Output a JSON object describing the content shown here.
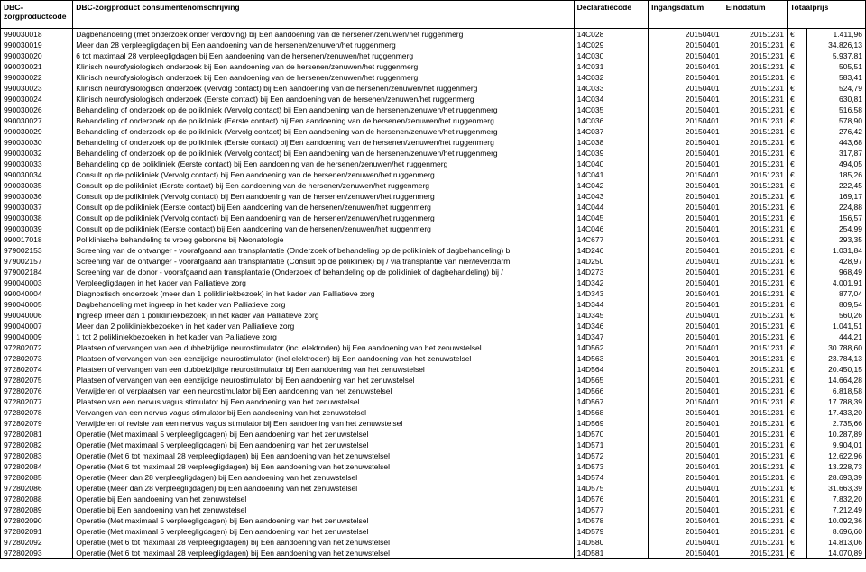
{
  "columns": [
    {
      "key": "code",
      "label": "DBC-zorgproductcode",
      "class": "code"
    },
    {
      "key": "desc",
      "label": "DBC-zorgproduct consumentenomschrijving",
      "class": "desc"
    },
    {
      "key": "decl",
      "label": "Declaratiecode",
      "class": "code"
    },
    {
      "key": "ingang",
      "label": "Ingangsdatum",
      "class": "num"
    },
    {
      "key": "eind",
      "label": "Einddatum",
      "class": "num"
    },
    {
      "key": "totaalprijs",
      "label": "Totaalprijs",
      "class": "cur",
      "colspan": 2
    }
  ],
  "currency_symbol": "€",
  "rows": [
    {
      "code": "990030018",
      "desc": "Dagbehandeling (met onderzoek onder verdoving) bij Een aandoening van de hersenen/zenuwen/het ruggenmerg",
      "decl": "14C028",
      "ingang": "20150401",
      "eind": "20151231",
      "prijs": "1.411,96"
    },
    {
      "code": "990030019",
      "desc": "Meer dan 28 verpleegligdagen bij Een aandoening van de hersenen/zenuwen/het ruggenmerg",
      "decl": "14C029",
      "ingang": "20150401",
      "eind": "20151231",
      "prijs": "34.826,13"
    },
    {
      "code": "990030020",
      "desc": "6 tot maximaal 28 verpleegligdagen bij Een aandoening van de hersenen/zenuwen/het ruggenmerg",
      "decl": "14C030",
      "ingang": "20150401",
      "eind": "20151231",
      "prijs": "5.937,81"
    },
    {
      "code": "990030021",
      "desc": "Klinisch neurofysiologisch onderzoek bij Een aandoening van de hersenen/zenuwen/het ruggenmerg",
      "decl": "14C031",
      "ingang": "20150401",
      "eind": "20151231",
      "prijs": "505,51"
    },
    {
      "code": "990030022",
      "desc": "Klinisch neurofysiologisch onderzoek bij Een aandoening van de hersenen/zenuwen/het ruggenmerg",
      "decl": "14C032",
      "ingang": "20150401",
      "eind": "20151231",
      "prijs": "583,41"
    },
    {
      "code": "990030023",
      "desc": "Klinisch neurofysiologisch onderzoek (Vervolg contact) bij Een aandoening van de hersenen/zenuwen/het ruggenmerg",
      "decl": "14C033",
      "ingang": "20150401",
      "eind": "20151231",
      "prijs": "524,79"
    },
    {
      "code": "990030024",
      "desc": "Klinisch neurofysiologisch onderzoek (Eerste contact) bij Een aandoening van de hersenen/zenuwen/het ruggenmerg",
      "decl": "14C034",
      "ingang": "20150401",
      "eind": "20151231",
      "prijs": "630,81"
    },
    {
      "code": "990030026",
      "desc": "Behandeling of onderzoek op de polikliniek (Vervolg contact) bij Een aandoening van de hersenen/zenuwen/het ruggenmerg",
      "decl": "14C035",
      "ingang": "20150401",
      "eind": "20151231",
      "prijs": "516,58"
    },
    {
      "code": "990030027",
      "desc": "Behandeling of onderzoek op de polikliniek (Eerste contact) bij Een aandoening van de hersenen/zenuwen/het ruggenmerg",
      "decl": "14C036",
      "ingang": "20150401",
      "eind": "20151231",
      "prijs": "578,90"
    },
    {
      "code": "990030029",
      "desc": "Behandeling of onderzoek op de polikliniek (Vervolg contact) bij Een aandoening van de hersenen/zenuwen/het ruggenmerg",
      "decl": "14C037",
      "ingang": "20150401",
      "eind": "20151231",
      "prijs": "276,42"
    },
    {
      "code": "990030030",
      "desc": "Behandeling of onderzoek op de polikliniek (Eerste contact) bij Een aandoening van de hersenen/zenuwen/het ruggenmerg",
      "decl": "14C038",
      "ingang": "20150401",
      "eind": "20151231",
      "prijs": "443,68"
    },
    {
      "code": "990030032",
      "desc": "Behandeling of onderzoek op de polikliniek (Vervolg contact) bij Een aandoening van de hersenen/zenuwen/het ruggenmerg",
      "decl": "14C039",
      "ingang": "20150401",
      "eind": "20151231",
      "prijs": "317,87"
    },
    {
      "code": "990030033",
      "desc": "Behandeling op de polikliniek (Eerste contact) bij Een aandoening van de hersenen/zenuwen/het ruggenmerg",
      "decl": "14C040",
      "ingang": "20150401",
      "eind": "20151231",
      "prijs": "494,05"
    },
    {
      "code": "990030034",
      "desc": "Consult op de polikliniek (Vervolg contact) bij Een aandoening van de hersenen/zenuwen/het ruggenmerg",
      "decl": "14C041",
      "ingang": "20150401",
      "eind": "20151231",
      "prijs": "185,26"
    },
    {
      "code": "990030035",
      "desc": "Consult op de polikliniet (Eerste contact) bij Een aandoening van de hersenen/zenuwen/het ruggenmerg",
      "decl": "14C042",
      "ingang": "20150401",
      "eind": "20151231",
      "prijs": "222,45"
    },
    {
      "code": "990030036",
      "desc": "Consult op de polikliniek (Vervolg contact) bij Een aandoening van de hersenen/zenuwen/het ruggenmerg",
      "decl": "14C043",
      "ingang": "20150401",
      "eind": "20151231",
      "prijs": "169,17"
    },
    {
      "code": "990030037",
      "desc": "Consult op de polikliniek (Eerste contact) bij Een aandoening van de hersenen/zenuwen/het ruggenmerg",
      "decl": "14C044",
      "ingang": "20150401",
      "eind": "20151231",
      "prijs": "224,88"
    },
    {
      "code": "990030038",
      "desc": "Consult op de polikliniek (Vervolg contact) bij Een aandoening van de hersenen/zenuwen/het ruggenmerg",
      "decl": "14C045",
      "ingang": "20150401",
      "eind": "20151231",
      "prijs": "156,57"
    },
    {
      "code": "990030039",
      "desc": "Consult op de polikliniek (Eerste contact) bij Een aandoening van de hersenen/zenuwen/het ruggenmerg",
      "decl": "14C046",
      "ingang": "20150401",
      "eind": "20151231",
      "prijs": "254,99"
    },
    {
      "code": "990017018",
      "desc": "Poliklinische behandeling te vroeg geborene bij Neonatologie",
      "decl": "14C677",
      "ingang": "20150401",
      "eind": "20151231",
      "prijs": "293,35"
    },
    {
      "code": "979002153",
      "desc": "Screening van de ontvanger - voorafgaand aan transplantatie (Onderzoek of behandeling op de polikliniek of dagbehandeling) b",
      "decl": "14D246",
      "ingang": "20150401",
      "eind": "20151231",
      "prijs": "1.031,84"
    },
    {
      "code": "979002157",
      "desc": "Screening van de ontvanger - voorafgaand aan transplantatie (Consult op de polikliniek) bij / via transplantie van nier/lever/darm",
      "decl": "14D250",
      "ingang": "20150401",
      "eind": "20151231",
      "prijs": "428,97"
    },
    {
      "code": "979002184",
      "desc": "Screening van de donor - voorafgaand aan transplantatie (Onderzoek of behandeling op de polikliniek of dagbehandeling) bij /",
      "decl": "14D273",
      "ingang": "20150401",
      "eind": "20151231",
      "prijs": "968,49"
    },
    {
      "code": "990040003",
      "desc": "Verpleegligdagen in het kader van Palliatieve zorg",
      "decl": "14D342",
      "ingang": "20150401",
      "eind": "20151231",
      "prijs": "4.001,91"
    },
    {
      "code": "990040004",
      "desc": "Diagnostisch onderzoek (meer dan 1 polikliniekbezoek) in het kader van Palliatieve zorg",
      "decl": "14D343",
      "ingang": "20150401",
      "eind": "20151231",
      "prijs": "877,04"
    },
    {
      "code": "990040005",
      "desc": "Dagbehandeling met ingreep in het kader van Palliatieve zorg",
      "decl": "14D344",
      "ingang": "20150401",
      "eind": "20151231",
      "prijs": "809,54"
    },
    {
      "code": "990040006",
      "desc": "Ingreep (meer dan 1 polikliniekbezoek) in het kader van Palliatieve zorg",
      "decl": "14D345",
      "ingang": "20150401",
      "eind": "20151231",
      "prijs": "560,26"
    },
    {
      "code": "990040007",
      "desc": "Meer dan 2 polikliniekbezoeken in het kader van Palliatieve zorg",
      "decl": "14D346",
      "ingang": "20150401",
      "eind": "20151231",
      "prijs": "1.041,51"
    },
    {
      "code": "990040009",
      "desc": "1 tot 2 polikliniekbezoeken in het kader van Palliatieve zorg",
      "decl": "14D347",
      "ingang": "20150401",
      "eind": "20151231",
      "prijs": "444,21"
    },
    {
      "code": "972802072",
      "desc": "Plaatsen of vervangen van een dubbelzijdige neurostimulator (incl elektroden) bij Een aandoening van het zenuwstelsel",
      "decl": "14D562",
      "ingang": "20150401",
      "eind": "20151231",
      "prijs": "30.788,60"
    },
    {
      "code": "972802073",
      "desc": "Plaatsen of vervangen van een eenzijdige neurostimulator (incl elektroden) bij Een aandoening van het zenuwstelsel",
      "decl": "14D563",
      "ingang": "20150401",
      "eind": "20151231",
      "prijs": "23.784,13"
    },
    {
      "code": "972802074",
      "desc": "Plaatsen of vervangen van een dubbelzijdige neurostimulator bij Een aandoening van het zenuwstelsel",
      "decl": "14D564",
      "ingang": "20150401",
      "eind": "20151231",
      "prijs": "20.450,15"
    },
    {
      "code": "972802075",
      "desc": "Plaatsen of vervangen van een eenzijdige neurostimulator bij Een aandoening van het zenuwstelsel",
      "decl": "14D565",
      "ingang": "20150401",
      "eind": "20151231",
      "prijs": "14.664,28"
    },
    {
      "code": "972802076",
      "desc": "Verwijderen of verplaatsen van een neurostimulator bij Een aandoening van het zenuwstelsel",
      "decl": "14D566",
      "ingang": "20150401",
      "eind": "20151231",
      "prijs": "6.818,58"
    },
    {
      "code": "972802077",
      "desc": "Plaatsen van een nervus vagus stimulator bij Een aandoening van het zenuwstelsel",
      "decl": "14D567",
      "ingang": "20150401",
      "eind": "20151231",
      "prijs": "17.788,39"
    },
    {
      "code": "972802078",
      "desc": "Vervangen van een nervus vagus stimulator bij Een aandoening van het zenuwstelsel",
      "decl": "14D568",
      "ingang": "20150401",
      "eind": "20151231",
      "prijs": "17.433,20"
    },
    {
      "code": "972802079",
      "desc": "Verwijderen of revisie van een nervus vagus stimulator bij Een aandoening van het zenuwstelsel",
      "decl": "14D569",
      "ingang": "20150401",
      "eind": "20151231",
      "prijs": "2.735,66"
    },
    {
      "code": "972802081",
      "desc": "Operatie (Met maximaal 5 verpleegligdagen) bij Een aandoening van het zenuwstelsel",
      "decl": "14D570",
      "ingang": "20150401",
      "eind": "20151231",
      "prijs": "10.287,89"
    },
    {
      "code": "972802082",
      "desc": "Operatie (Met maximaal 5 verpleegligdagen) bij Een aandoening van het zenuwstelsel",
      "decl": "14D571",
      "ingang": "20150401",
      "eind": "20151231",
      "prijs": "9.904,01"
    },
    {
      "code": "972802083",
      "desc": "Operatie (Met 6 tot maximaal 28 verpleegligdagen) bij Een aandoening van het zenuwstelsel",
      "decl": "14D572",
      "ingang": "20150401",
      "eind": "20151231",
      "prijs": "12.622,96"
    },
    {
      "code": "972802084",
      "desc": "Operatie (Met 6 tot maximaal 28 verpleegligdagen) bij Een aandoening van het zenuwstelsel",
      "decl": "14D573",
      "ingang": "20150401",
      "eind": "20151231",
      "prijs": "13.228,73"
    },
    {
      "code": "972802085",
      "desc": "Operatie (Meer dan 28 verpleegligdagen) bij Een aandoening van het zenuwstelsel",
      "decl": "14D574",
      "ingang": "20150401",
      "eind": "20151231",
      "prijs": "28.693,39"
    },
    {
      "code": "972802086",
      "desc": "Operatie (Meer dan 28 verpleegligdagen) bij Een aandoening van het zenuwstelsel",
      "decl": "14D575",
      "ingang": "20150401",
      "eind": "20151231",
      "prijs": "31.663,39"
    },
    {
      "code": "972802088",
      "desc": "Operatie bij Een aandoening van het zenuwstelsel",
      "decl": "14D576",
      "ingang": "20150401",
      "eind": "20151231",
      "prijs": "7.832,20"
    },
    {
      "code": "972802089",
      "desc": "Operatie bij Een aandoening van het zenuwstelsel",
      "decl": "14D577",
      "ingang": "20150401",
      "eind": "20151231",
      "prijs": "7.212,49"
    },
    {
      "code": "972802090",
      "desc": "Operatie (Met maximaal 5 verpleegligdagen) bij Een aandoening van het zenuwstelsel",
      "decl": "14D578",
      "ingang": "20150401",
      "eind": "20151231",
      "prijs": "10.092,36"
    },
    {
      "code": "972802091",
      "desc": "Operatie (Met maximaal 5 verpleegligdagen) bij Een aandoening van het zenuwstelsel",
      "decl": "14D579",
      "ingang": "20150401",
      "eind": "20151231",
      "prijs": "8.696,60"
    },
    {
      "code": "972802092",
      "desc": "Operatie (Met 6 tot maximaal 28 verpleegligdagen) bij Een aandoening van het zenuwstelsel",
      "decl": "14D580",
      "ingang": "20150401",
      "eind": "20151231",
      "prijs": "14.813,06"
    },
    {
      "code": "972802093",
      "desc": "Operatie (Met 6 tot maximaal 28 verpleegligdagen) bij Een aandoening van het zenuwstelsel",
      "decl": "14D581",
      "ingang": "20150401",
      "eind": "20151231",
      "prijs": "14.070,89"
    }
  ]
}
